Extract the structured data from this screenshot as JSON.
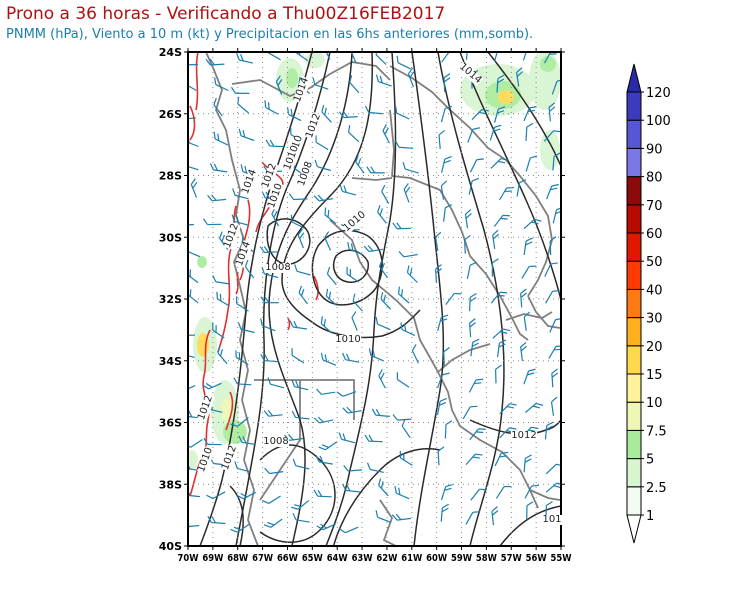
{
  "header": {
    "title": "Prono a 36 horas - Verificando a Thu00Z16FEB2017",
    "subtitle": "PNMM (hPa), Viento a 10 m (kt) y Precipitacion en las 6hs anteriores (mm,somb)."
  },
  "axes": {
    "lat_labels": [
      "24S",
      "26S",
      "28S",
      "30S",
      "32S",
      "34S",
      "36S",
      "38S",
      "40S"
    ],
    "lon_labels": [
      "70W",
      "69W",
      "68W",
      "67W",
      "66W",
      "65W",
      "64W",
      "63W",
      "62W",
      "61W",
      "60W",
      "59W",
      "58W",
      "57W",
      "56W",
      "55W"
    ]
  },
  "colorbar": {
    "levels": [
      "1",
      "2.5",
      "5",
      "7.5",
      "10",
      "15",
      "20",
      "30",
      "40",
      "50",
      "60",
      "70",
      "80",
      "90",
      "100",
      "120"
    ],
    "colors": [
      "#f2fcf0",
      "#d7f5cf",
      "#a9eb9a",
      "#eef8b4",
      "#fff29a",
      "#ffd94d",
      "#ffb01f",
      "#ff7a12",
      "#ff3a06",
      "#e01800",
      "#b80a00",
      "#8c0a0a",
      "#7b78e6",
      "#5656d6",
      "#3b3bbd",
      "#2a2aa8"
    ]
  },
  "contours": {
    "labels": [
      "1014",
      "1012",
      "1010",
      "1008",
      "1010",
      "1012",
      "1010",
      "1008",
      "1012",
      "1014",
      "1014",
      "1012",
      "1010",
      "1012",
      "1010",
      "1008",
      "1010",
      "1012",
      "1014",
      "101"
    ]
  }
}
